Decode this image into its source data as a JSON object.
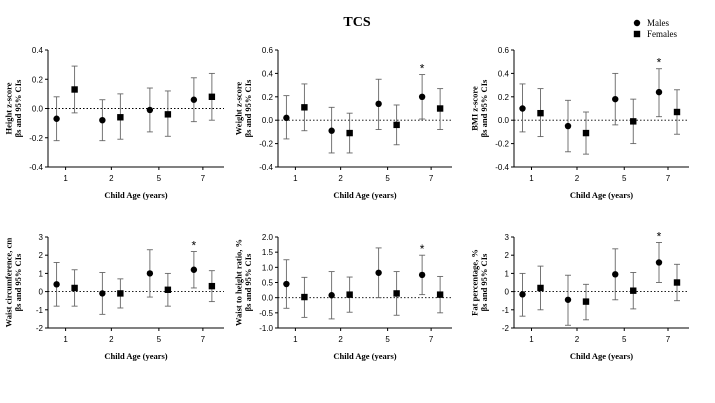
{
  "figure_title": "TCS",
  "legend": {
    "items": [
      {
        "label": "Males",
        "marker": "circle"
      },
      {
        "label": "Females",
        "marker": "square"
      }
    ],
    "placement": "top-right"
  },
  "colors": {
    "marker": "#000000",
    "error_bar": "#666666",
    "zero_line": "#000000"
  },
  "chart_data": [
    {
      "type": "scatter",
      "xlabel": "Child Age (years)",
      "ylabel": [
        "Height z-score",
        "βs and 95% CIs"
      ],
      "categories": [
        "1",
        "2",
        "5",
        "7"
      ],
      "ylim": [
        -0.4,
        0.4
      ],
      "yticks": [
        -0.4,
        -0.2,
        0.0,
        0.2,
        0.4
      ],
      "ytick_labels": [
        "-0.4",
        "-0.2",
        "0.0",
        "0.2",
        "0.4"
      ],
      "series": [
        {
          "name": "Males",
          "values": [
            -0.07,
            -0.08,
            -0.01,
            0.06
          ],
          "ci_low": [
            -0.22,
            -0.22,
            -0.16,
            -0.09
          ],
          "ci_high": [
            0.08,
            0.06,
            0.14,
            0.21
          ]
        },
        {
          "name": "Females",
          "values": [
            0.13,
            -0.06,
            -0.04,
            0.08
          ],
          "ci_low": [
            -0.03,
            -0.21,
            -0.19,
            -0.08
          ],
          "ci_high": [
            0.29,
            0.1,
            0.12,
            0.24
          ]
        }
      ],
      "significant": []
    },
    {
      "type": "scatter",
      "xlabel": "Child Age (years)",
      "ylabel": [
        "Weight z-score",
        "βs and 95% CIs"
      ],
      "categories": [
        "1",
        "2",
        "5",
        "7"
      ],
      "ylim": [
        -0.4,
        0.6
      ],
      "yticks": [
        -0.4,
        -0.2,
        0.0,
        0.2,
        0.4,
        0.6
      ],
      "ytick_labels": [
        "-0.4",
        "-0.2",
        "0.0",
        "0.2",
        "0.4",
        "0.6"
      ],
      "series": [
        {
          "name": "Males",
          "values": [
            0.02,
            -0.09,
            0.14,
            0.2
          ],
          "ci_low": [
            -0.16,
            -0.28,
            -0.08,
            0.01
          ],
          "ci_high": [
            0.21,
            0.11,
            0.35,
            0.39
          ]
        },
        {
          "name": "Females",
          "values": [
            0.11,
            -0.11,
            -0.04,
            0.1
          ],
          "ci_low": [
            -0.09,
            -0.28,
            -0.21,
            -0.08
          ],
          "ci_high": [
            0.31,
            0.06,
            0.13,
            0.27
          ]
        }
      ],
      "significant": [
        "7"
      ]
    },
    {
      "type": "scatter",
      "xlabel": "Child Age (years)",
      "ylabel": [
        "BMI z-score",
        "βs and 95% CIs"
      ],
      "categories": [
        "1",
        "2",
        "5",
        "7"
      ],
      "ylim": [
        -0.4,
        0.6
      ],
      "yticks": [
        -0.4,
        -0.2,
        0.0,
        0.2,
        0.4,
        0.6
      ],
      "ytick_labels": [
        "-0.4",
        "-0.2",
        "0.0",
        "0.2",
        "0.4",
        "0.6"
      ],
      "series": [
        {
          "name": "Males",
          "values": [
            0.1,
            -0.05,
            0.18,
            0.24
          ],
          "ci_low": [
            -0.1,
            -0.27,
            -0.04,
            0.03
          ],
          "ci_high": [
            0.31,
            0.17,
            0.4,
            0.44
          ]
        },
        {
          "name": "Females",
          "values": [
            0.06,
            -0.11,
            -0.01,
            0.07
          ],
          "ci_low": [
            -0.14,
            -0.29,
            -0.2,
            -0.12
          ],
          "ci_high": [
            0.27,
            0.07,
            0.18,
            0.26
          ]
        }
      ],
      "significant": [
        "7"
      ]
    },
    {
      "type": "scatter",
      "xlabel": "Child Age (years)",
      "ylabel": [
        "Waist circumference, cm",
        "βs and 95% CIs"
      ],
      "categories": [
        "1",
        "2",
        "5",
        "7"
      ],
      "ylim": [
        -2,
        3
      ],
      "yticks": [
        -2,
        -1,
        0,
        1,
        2,
        3
      ],
      "ytick_labels": [
        "-2",
        "-1",
        "0",
        "1",
        "2",
        "3"
      ],
      "series": [
        {
          "name": "Males",
          "values": [
            0.4,
            -0.1,
            1.0,
            1.2
          ],
          "ci_low": [
            -0.8,
            -1.25,
            -0.3,
            0.2
          ],
          "ci_high": [
            1.6,
            1.05,
            2.3,
            2.2
          ]
        },
        {
          "name": "Females",
          "values": [
            0.2,
            -0.1,
            0.1,
            0.3
          ],
          "ci_low": [
            -0.8,
            -0.9,
            -0.8,
            -0.55
          ],
          "ci_high": [
            1.2,
            0.7,
            1.0,
            1.15
          ]
        }
      ],
      "significant": [
        "7"
      ]
    },
    {
      "type": "scatter",
      "xlabel": "Child Age (years)",
      "ylabel": [
        "Waist to height ratio, %",
        "βs and 95% CIs"
      ],
      "categories": [
        "1",
        "2",
        "5",
        "7"
      ],
      "ylim": [
        -1.0,
        2.0
      ],
      "yticks": [
        -1.0,
        -0.5,
        0.0,
        0.5,
        1.0,
        1.5,
        2.0
      ],
      "ytick_labels": [
        "-1.0",
        "-0.5",
        "0.0",
        "0.5",
        "1.0",
        "1.5",
        "2.0"
      ],
      "series": [
        {
          "name": "Males",
          "values": [
            0.45,
            0.08,
            0.82,
            0.75
          ],
          "ci_low": [
            -0.35,
            -0.7,
            0.0,
            0.1
          ],
          "ci_high": [
            1.25,
            0.86,
            1.64,
            1.4
          ]
        },
        {
          "name": "Females",
          "values": [
            0.02,
            0.1,
            0.14,
            0.1
          ],
          "ci_low": [
            -0.65,
            -0.48,
            -0.58,
            -0.5
          ],
          "ci_high": [
            0.67,
            0.68,
            0.86,
            0.7
          ]
        }
      ],
      "significant": [
        "7"
      ]
    },
    {
      "type": "scatter",
      "xlabel": "Child Age (years)",
      "ylabel": [
        "Fat percentage, %",
        "βs and 95% CIs"
      ],
      "categories": [
        "1",
        "2",
        "5",
        "7"
      ],
      "ylim": [
        -2,
        3
      ],
      "yticks": [
        -2,
        -1,
        0,
        1,
        2,
        3
      ],
      "ytick_labels": [
        "-2",
        "-1",
        "0",
        "1",
        "2",
        "3"
      ],
      "series": [
        {
          "name": "Males",
          "values": [
            -0.15,
            -0.45,
            0.95,
            1.6
          ],
          "ci_low": [
            -1.35,
            -1.85,
            -0.45,
            0.5
          ],
          "ci_high": [
            1.0,
            0.9,
            2.35,
            2.7
          ]
        },
        {
          "name": "Females",
          "values": [
            0.2,
            -0.55,
            0.05,
            0.5
          ],
          "ci_low": [
            -1.0,
            -1.55,
            -0.95,
            -0.5
          ],
          "ci_high": [
            1.4,
            0.4,
            1.05,
            1.5
          ]
        }
      ],
      "significant": [
        "7"
      ]
    }
  ]
}
